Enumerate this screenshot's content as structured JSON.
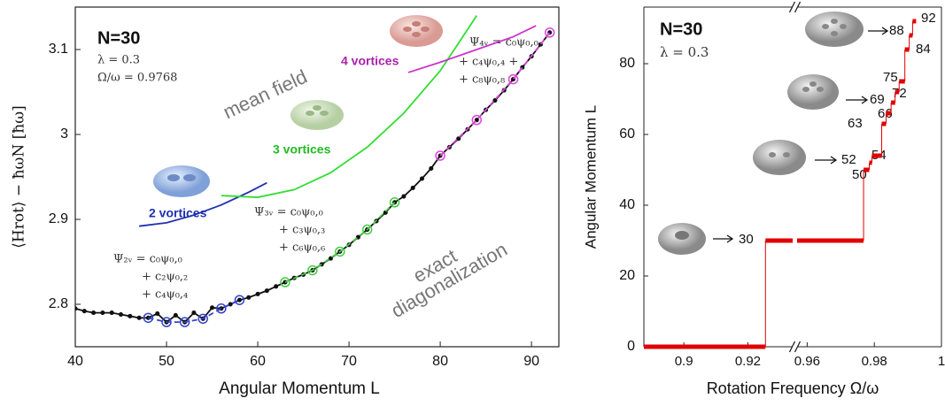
{
  "chart_data": [
    {
      "type": "line",
      "title": "N=30",
      "subtitle": [
        "λ = 0.3",
        "Ω/ω = 0.9768"
      ],
      "xlabel": "Angular Momentum L",
      "ylabel": "⟨Hrot⟩ − ħωN   [ħω]",
      "xlim": [
        40,
        93
      ],
      "ylim": [
        2.75,
        3.15
      ],
      "xticks": [
        40,
        50,
        60,
        70,
        80,
        90
      ],
      "yticks": [
        2.8,
        2.9,
        3.0,
        3.1
      ],
      "annotations": [
        "mean field",
        "exact",
        "diagonalization",
        "Ψ₂ᵥ = c₀ψ₀,₀",
        "+ c₂ψ₀,₂",
        "+ c₄ψ₀,₄",
        "Ψ₃ᵥ = c₀ψ₀,₀",
        "+ c₃ψ₀,₃",
        "+ c₆ψ₀,₆",
        "Ψ₄ᵥ = c₀ψ₀,₀",
        "+ c₄ψ₀,₄ +",
        "+ c₈ψ₀,₈"
      ],
      "series": [
        {
          "color": "#111111",
          "style": "solid-dots",
          "x": [
            40,
            41,
            42,
            43,
            44,
            45,
            46,
            47,
            48,
            49,
            50,
            51,
            52,
            53,
            54,
            55,
            56,
            57,
            58,
            59,
            60,
            61,
            62,
            63,
            64,
            65,
            66,
            67,
            68,
            69,
            70,
            71,
            72,
            73,
            74,
            75,
            76,
            77,
            78,
            79,
            80,
            81,
            82,
            83,
            84,
            85,
            86,
            87,
            88,
            89,
            90,
            91,
            92
          ],
          "values": [
            2.795,
            2.792,
            2.79,
            2.79,
            2.79,
            2.788,
            2.786,
            2.784,
            2.784,
            2.789,
            2.779,
            2.787,
            2.779,
            2.79,
            2.783,
            2.796,
            2.795,
            2.8,
            2.805,
            2.808,
            2.812,
            2.816,
            2.821,
            2.826,
            2.831,
            2.835,
            2.84,
            2.847,
            2.854,
            2.862,
            2.87,
            2.879,
            2.888,
            2.898,
            2.908,
            2.92,
            2.927,
            2.937,
            2.948,
            2.96,
            2.975,
            2.985,
            2.995,
            3.006,
            3.017,
            3.029,
            3.04,
            3.052,
            3.065,
            3.079,
            3.092,
            3.106,
            3.12
          ]
        },
        {
          "name": "2 vortices",
          "color": "#1f2fb0",
          "style": "solid",
          "x": [
            47,
            50,
            53,
            56,
            59,
            61
          ],
          "values": [
            2.892,
            2.896,
            2.905,
            2.917,
            2.932,
            2.943
          ]
        },
        {
          "name": "3 vortices",
          "color": "#33dd33",
          "style": "solid",
          "x": [
            56,
            60,
            64,
            68,
            72,
            76,
            80,
            84
          ],
          "values": [
            2.928,
            2.926,
            2.935,
            2.955,
            2.985,
            3.025,
            3.075,
            3.14
          ]
        },
        {
          "name": "4 vortices",
          "color": "#cc33cc",
          "style": "solid",
          "x": [
            76.5,
            80,
            84,
            88,
            90.5
          ],
          "values": [
            3.073,
            3.085,
            3.1,
            3.115,
            3.128
          ]
        },
        {
          "color": "#3344cc",
          "style": "dashed-circles",
          "x": [
            48,
            50,
            52,
            54,
            56,
            58
          ],
          "values": [
            2.784,
            2.779,
            2.779,
            2.783,
            2.795,
            2.805
          ]
        },
        {
          "color": "#44cc44",
          "style": "dashed-circles",
          "x": [
            63,
            66,
            69,
            72,
            75
          ],
          "values": [
            2.826,
            2.84,
            2.862,
            2.888,
            2.92
          ]
        },
        {
          "color": "#dd44dd",
          "style": "dashed-circles",
          "x": [
            80,
            84,
            88,
            92
          ],
          "values": [
            2.975,
            3.017,
            3.065,
            3.12
          ]
        }
      ]
    },
    {
      "type": "step",
      "title": "N=30",
      "subtitle": [
        "λ = 0.3"
      ],
      "xlabel": "Rotation Frequency Ω/ω",
      "ylabel": "Angular Momentum L",
      "xlim": [
        0.8875,
        1.0
      ],
      "x_break": [
        0.934,
        0.957
      ],
      "ylim": [
        0,
        96
      ],
      "xticks": [
        0.9,
        0.92,
        0.96,
        0.98,
        1
      ],
      "yticks": [
        0,
        20,
        40,
        60,
        80
      ],
      "color": "#e00000",
      "x": [
        0.8875,
        0.9255,
        0.9768,
        0.9785,
        0.9793,
        0.9822,
        0.9835,
        0.985,
        0.9862,
        0.9874,
        0.9891,
        0.9904,
        0.9914
      ],
      "values": [
        0,
        30,
        50,
        52,
        54,
        63,
        66,
        69,
        72,
        75,
        84,
        88,
        92
      ]
    }
  ]
}
